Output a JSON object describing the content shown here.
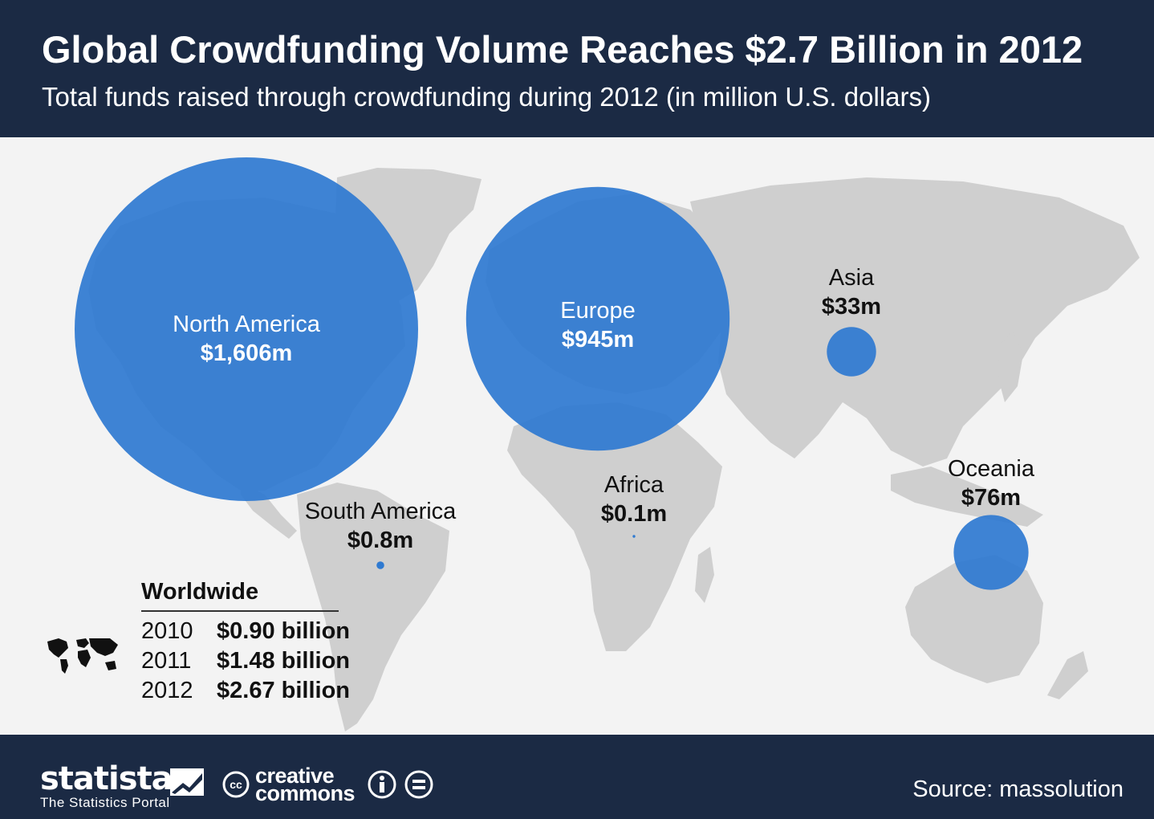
{
  "header": {
    "title": "Global Crowdfunding Volume Reaches $2.7 Billion in 2012",
    "subtitle": "Total funds raised through crowdfunding during 2012 (in million U.S. dollars)"
  },
  "chart_data": {
    "type": "bubble-map",
    "title": "Global Crowdfunding Volume Reaches $2.7 Billion in 2012",
    "subtitle": "Total funds raised through crowdfunding during 2012 (in million U.S. dollars)",
    "unit": "million U.S. dollars",
    "bubble_color": "#2f7ad1",
    "regions": [
      {
        "name": "North America",
        "value": 1606,
        "label": "$1,606m"
      },
      {
        "name": "Europe",
        "value": 945,
        "label": "$945m"
      },
      {
        "name": "Asia",
        "value": 33,
        "label": "$33m"
      },
      {
        "name": "Oceania",
        "value": 76,
        "label": "$76m"
      },
      {
        "name": "South America",
        "value": 0.8,
        "label": "$0.8m"
      },
      {
        "name": "Africa",
        "value": 0.1,
        "label": "$0.1m"
      }
    ],
    "worldwide": {
      "title": "Worldwide",
      "rows": [
        {
          "year": "2010",
          "value": 0.9,
          "label": "$0.90 billion"
        },
        {
          "year": "2011",
          "value": 1.48,
          "label": "$1.48 billion"
        },
        {
          "year": "2012",
          "value": 2.67,
          "label": "$2.67 billion"
        }
      ]
    }
  },
  "footer": {
    "brand": "statista",
    "brand_tagline": "The Statistics Portal",
    "cc_line1": "creative",
    "cc_line2": "commons",
    "source": "Source: massolution"
  },
  "colors": {
    "header_bg": "#1b2a44",
    "map_land": "#cfcfcf",
    "map_bg": "#f3f3f3",
    "bubble": "#2f7ad1"
  }
}
